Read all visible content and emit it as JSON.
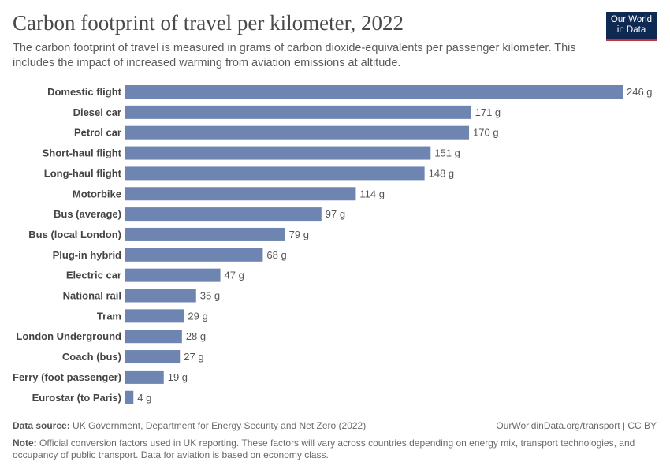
{
  "header": {
    "title": "Carbon footprint of travel per kilometer, 2022",
    "subtitle": "The carbon footprint of travel is measured in grams of carbon dioxide-equivalents per passenger kilometer. This includes the impact of increased warming from aviation emissions at altitude.",
    "logo_line1": "Our World",
    "logo_line2": "in Data"
  },
  "colors": {
    "bar": "#6d85b0",
    "title": "#4a4a4a",
    "logo_bg": "#0e2a52",
    "logo_accent": "#c5333a"
  },
  "chart_data": {
    "type": "bar",
    "orientation": "horizontal",
    "title": "Carbon footprint of travel per kilometer, 2022",
    "unit": "g",
    "categories": [
      "Domestic flight",
      "Diesel car",
      "Petrol car",
      "Short-haul flight",
      "Long-haul flight",
      "Motorbike",
      "Bus (average)",
      "Bus (local London)",
      "Plug-in hybrid",
      "Electric car",
      "National rail",
      "Tram",
      "London Underground",
      "Coach (bus)",
      "Ferry (foot passenger)",
      "Eurostar (to Paris)"
    ],
    "values": [
      246,
      171,
      170,
      151,
      148,
      114,
      97,
      79,
      68,
      47,
      35,
      29,
      28,
      27,
      19,
      4
    ],
    "value_labels": [
      "246 g",
      "171 g",
      "170 g",
      "151 g",
      "148 g",
      "114 g",
      "97 g",
      "79 g",
      "68 g",
      "47 g",
      "35 g",
      "29 g",
      "28 g",
      "27 g",
      "19 g",
      "4 g"
    ],
    "xlim": [
      0,
      246
    ],
    "grid": false,
    "legend": "none"
  },
  "footer": {
    "source_label": "Data source:",
    "source_text": "UK Government, Department for Energy Security and Net Zero (2022)",
    "credit": "OurWorldinData.org/transport | CC BY",
    "note_label": "Note:",
    "note_text": "Official conversion factors used in UK reporting. These factors will vary across countries depending on energy mix, transport technologies, and occupancy of public transport. Data for aviation is based on economy class."
  }
}
